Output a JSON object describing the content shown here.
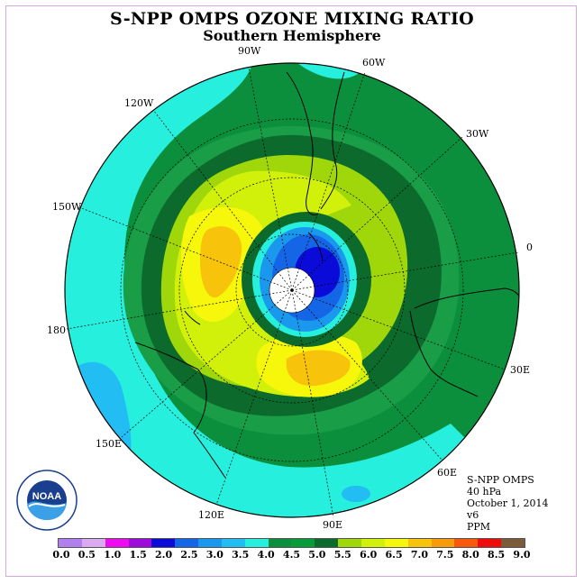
{
  "title": "S-NPP OMPS OZONE MIXING RATIO",
  "subtitle": "Southern Hemisphere",
  "meridian_labels": {
    "w90": "90W",
    "w60": "60W",
    "w30": "30W",
    "lon0": "0",
    "e30": "30E",
    "e60": "60E",
    "e90": "90E",
    "e120": "120E",
    "e150": "150E",
    "lon180": "180",
    "w150": "150W",
    "w120": "120W"
  },
  "info": {
    "instrument": "S-NPP OMPS",
    "pressure": "40 hPa",
    "date": "October 1, 2014",
    "version": "v6",
    "units": "PPM"
  },
  "logo": {
    "text": "NOAA",
    "icon": "noaa-logo-icon"
  },
  "colorbar": {
    "colors": [
      "#b27fef",
      "#dba9f0",
      "#ef0bef",
      "#9c0bdb",
      "#0b0bd9",
      "#1466e6",
      "#1a98ee",
      "#22bdf2",
      "#26f0dd",
      "#0b8f3c",
      "#079b3a",
      "#0c6b2c",
      "#9fd70b",
      "#d1f10b",
      "#f7f70b",
      "#f7c30b",
      "#f79a0b",
      "#f7580b",
      "#ef0b0b",
      "#7c5b3a"
    ],
    "tick_labels": [
      "0.0",
      "0.5",
      "1.0",
      "1.5",
      "2.0",
      "2.5",
      "3.0",
      "3.5",
      "4.0",
      "4.5",
      "5.0",
      "5.5",
      "6.0",
      "6.5",
      "7.0",
      "7.5",
      "8.0",
      "8.5",
      "9.0"
    ]
  },
  "map_colors": {
    "level_3_5": "#26f0dd",
    "level_4_0": "#0b8f3c",
    "level_4_5": "#1a9d47",
    "level_5_0": "#0c6b2c",
    "level_5_5": "#9fd70b",
    "level_6_0": "#d1f10b",
    "level_6_5": "#f7f70b",
    "level_7_0": "#f7c30b",
    "level_7_5": "#f79a0b",
    "hole_2_5": "#1466e6",
    "hole_3_0": "#1a98ee",
    "hole_2_0": "#0b0bd9",
    "pole": "#ffffff"
  }
}
